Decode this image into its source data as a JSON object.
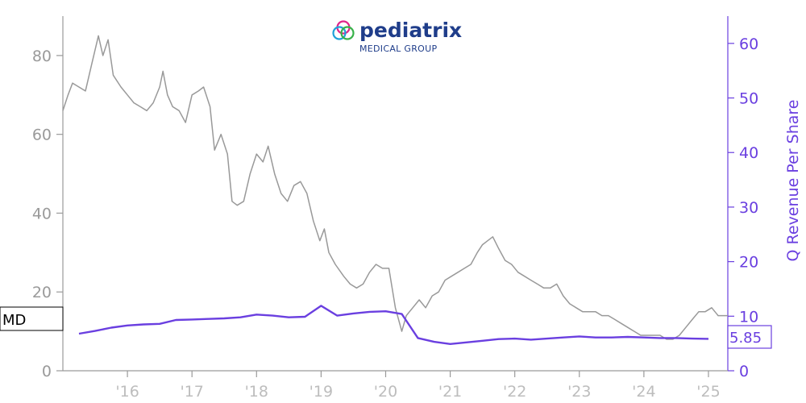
{
  "logo": {
    "name": "pediatrix",
    "subtitle": "MEDICAL GROUP"
  },
  "chart_data": {
    "type": "line",
    "ylabel_right": "Q Revenue Per Share",
    "x_tick_labels": [
      "'16",
      "'17",
      "'18",
      "'19",
      "'20",
      "'21",
      "'22",
      "'23",
      "'24",
      "'25"
    ],
    "x_tick_years": [
      2016,
      2017,
      2018,
      2019,
      2020,
      2021,
      2022,
      2023,
      2024,
      2025
    ],
    "xlim": [
      2015.0,
      2025.3
    ],
    "left_axis": {
      "ticks": [
        0,
        20,
        40,
        60,
        80
      ],
      "ylim": [
        0,
        90
      ]
    },
    "right_axis": {
      "ticks": [
        0,
        10,
        20,
        30,
        40,
        50,
        60
      ],
      "ylim": [
        0,
        65
      ]
    },
    "ticker_label": "MD",
    "last_value_label": "5.85",
    "colors": {
      "price": "#999999",
      "revenue": "#6a3fe0",
      "left_axis": "#9a9a9a",
      "right_axis": "#6a3fe0"
    },
    "series": [
      {
        "axis": "left",
        "points": [
          [
            2015.0,
            66
          ],
          [
            2015.08,
            70
          ],
          [
            2015.15,
            73
          ],
          [
            2015.25,
            72
          ],
          [
            2015.35,
            71
          ],
          [
            2015.45,
            78
          ],
          [
            2015.55,
            85
          ],
          [
            2015.62,
            80
          ],
          [
            2015.7,
            84
          ],
          [
            2015.78,
            75
          ],
          [
            2015.9,
            72
          ],
          [
            2016.0,
            70
          ],
          [
            2016.1,
            68
          ],
          [
            2016.2,
            67
          ],
          [
            2016.3,
            66
          ],
          [
            2016.4,
            68
          ],
          [
            2016.5,
            72
          ],
          [
            2016.55,
            76
          ],
          [
            2016.62,
            70
          ],
          [
            2016.7,
            67
          ],
          [
            2016.8,
            66
          ],
          [
            2016.9,
            63
          ],
          [
            2017.0,
            70
          ],
          [
            2017.1,
            71
          ],
          [
            2017.18,
            72
          ],
          [
            2017.28,
            67
          ],
          [
            2017.35,
            56
          ],
          [
            2017.45,
            60
          ],
          [
            2017.55,
            55
          ],
          [
            2017.62,
            43
          ],
          [
            2017.7,
            42
          ],
          [
            2017.8,
            43
          ],
          [
            2017.9,
            50
          ],
          [
            2018.0,
            55
          ],
          [
            2018.1,
            53
          ],
          [
            2018.18,
            57
          ],
          [
            2018.28,
            50
          ],
          [
            2018.38,
            45
          ],
          [
            2018.48,
            43
          ],
          [
            2018.58,
            47
          ],
          [
            2018.68,
            48
          ],
          [
            2018.78,
            45
          ],
          [
            2018.88,
            38
          ],
          [
            2018.98,
            33
          ],
          [
            2019.05,
            36
          ],
          [
            2019.12,
            30
          ],
          [
            2019.22,
            27
          ],
          [
            2019.35,
            24
          ],
          [
            2019.45,
            22
          ],
          [
            2019.55,
            21
          ],
          [
            2019.65,
            22
          ],
          [
            2019.75,
            25
          ],
          [
            2019.85,
            27
          ],
          [
            2019.95,
            26
          ],
          [
            2020.05,
            26
          ],
          [
            2020.15,
            16
          ],
          [
            2020.2,
            13
          ],
          [
            2020.25,
            10
          ],
          [
            2020.32,
            14
          ],
          [
            2020.42,
            16
          ],
          [
            2020.52,
            18
          ],
          [
            2020.62,
            16
          ],
          [
            2020.72,
            19
          ],
          [
            2020.82,
            20
          ],
          [
            2020.92,
            23
          ],
          [
            2021.02,
            24
          ],
          [
            2021.12,
            25
          ],
          [
            2021.22,
            26
          ],
          [
            2021.32,
            27
          ],
          [
            2021.42,
            30
          ],
          [
            2021.5,
            32
          ],
          [
            2021.58,
            33
          ],
          [
            2021.66,
            34
          ],
          [
            2021.75,
            31
          ],
          [
            2021.85,
            28
          ],
          [
            2021.95,
            27
          ],
          [
            2022.05,
            25
          ],
          [
            2022.15,
            24
          ],
          [
            2022.25,
            23
          ],
          [
            2022.35,
            22
          ],
          [
            2022.45,
            21
          ],
          [
            2022.55,
            21
          ],
          [
            2022.65,
            22
          ],
          [
            2022.75,
            19
          ],
          [
            2022.85,
            17
          ],
          [
            2022.95,
            16
          ],
          [
            2023.05,
            15
          ],
          [
            2023.15,
            15
          ],
          [
            2023.25,
            15
          ],
          [
            2023.35,
            14
          ],
          [
            2023.45,
            14
          ],
          [
            2023.55,
            13
          ],
          [
            2023.65,
            12
          ],
          [
            2023.75,
            11
          ],
          [
            2023.85,
            10
          ],
          [
            2023.95,
            9
          ],
          [
            2024.05,
            9
          ],
          [
            2024.15,
            9
          ],
          [
            2024.25,
            9
          ],
          [
            2024.35,
            8
          ],
          [
            2024.45,
            8
          ],
          [
            2024.55,
            9
          ],
          [
            2024.65,
            11
          ],
          [
            2024.75,
            13
          ],
          [
            2024.85,
            15
          ],
          [
            2024.95,
            15
          ],
          [
            2025.05,
            16
          ],
          [
            2025.15,
            14
          ],
          [
            2025.3,
            14
          ]
        ]
      },
      {
        "axis": "right",
        "points": [
          [
            2015.25,
            6.8
          ],
          [
            2015.5,
            7.3
          ],
          [
            2015.75,
            7.9
          ],
          [
            2016.0,
            8.3
          ],
          [
            2016.25,
            8.5
          ],
          [
            2016.5,
            8.6
          ],
          [
            2016.75,
            9.3
          ],
          [
            2017.0,
            9.4
          ],
          [
            2017.25,
            9.5
          ],
          [
            2017.5,
            9.6
          ],
          [
            2017.75,
            9.8
          ],
          [
            2018.0,
            10.3
          ],
          [
            2018.25,
            10.1
          ],
          [
            2018.5,
            9.8
          ],
          [
            2018.75,
            9.9
          ],
          [
            2019.0,
            11.9
          ],
          [
            2019.25,
            10.1
          ],
          [
            2019.5,
            10.5
          ],
          [
            2019.75,
            10.8
          ],
          [
            2020.0,
            10.9
          ],
          [
            2020.25,
            10.4
          ],
          [
            2020.5,
            6.0
          ],
          [
            2020.75,
            5.3
          ],
          [
            2021.0,
            4.9
          ],
          [
            2021.25,
            5.2
          ],
          [
            2021.5,
            5.5
          ],
          [
            2021.75,
            5.8
          ],
          [
            2022.0,
            5.9
          ],
          [
            2022.25,
            5.7
          ],
          [
            2022.5,
            5.9
          ],
          [
            2022.75,
            6.1
          ],
          [
            2023.0,
            6.3
          ],
          [
            2023.25,
            6.1
          ],
          [
            2023.5,
            6.1
          ],
          [
            2023.75,
            6.2
          ],
          [
            2024.0,
            6.1
          ],
          [
            2024.25,
            6.0
          ],
          [
            2024.5,
            6.0
          ],
          [
            2024.75,
            5.9
          ],
          [
            2025.0,
            5.85
          ]
        ]
      }
    ]
  }
}
